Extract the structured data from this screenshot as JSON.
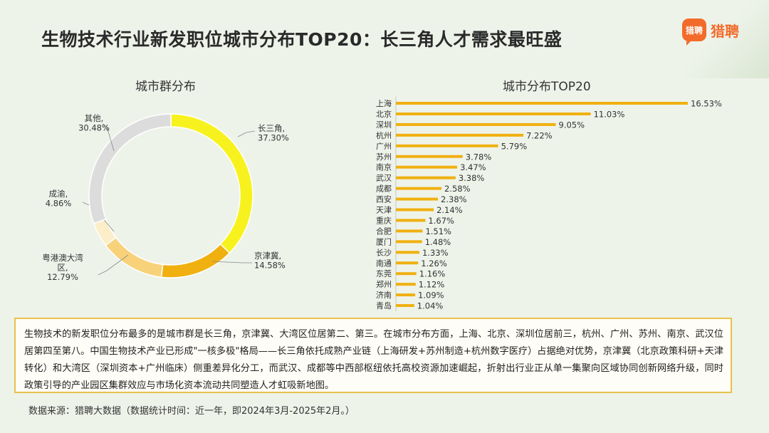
{
  "header": {
    "title": "生物技术行业新发职位城市分布TOP20：长三角人才需求最旺盛",
    "brand_logo_text": "猎聘",
    "brand_badge_text": "猎聘",
    "brand_color": "#f26b2a"
  },
  "chart_data": [
    {
      "type": "pie",
      "style": "donut",
      "title": "城市群分布",
      "categories": [
        "长三角",
        "京津冀",
        "粤港澳大湾区",
        "成渝",
        "其他"
      ],
      "labels": [
        [
          "长三角,",
          "37.30%"
        ],
        [
          "京津冀,",
          "14.58%"
        ],
        [
          "粤港澳大湾",
          "区,",
          "12.79%"
        ],
        [
          "成渝,",
          "4.86%"
        ],
        [
          "其他,",
          "30.48%"
        ]
      ],
      "values": [
        37.3,
        14.58,
        12.79,
        4.86,
        30.48
      ],
      "colors": [
        "#f7f21e",
        "#f0b010",
        "#f8d27a",
        "#fbeec8",
        "#dcdcdc"
      ]
    },
    {
      "type": "bar",
      "orientation": "horizontal",
      "title": "城市分布TOP20",
      "categories": [
        "上海",
        "北京",
        "深圳",
        "杭州",
        "广州",
        "苏州",
        "南京",
        "武汉",
        "成都",
        "西安",
        "天津",
        "重庆",
        "合肥",
        "厦门",
        "长沙",
        "南通",
        "东莞",
        "郑州",
        "济南",
        "青岛"
      ],
      "values": [
        16.53,
        11.03,
        9.05,
        7.22,
        5.79,
        3.78,
        3.47,
        3.38,
        2.58,
        2.38,
        2.14,
        1.67,
        1.51,
        1.48,
        1.33,
        1.26,
        1.16,
        1.12,
        1.09,
        1.04
      ],
      "value_labels": [
        "16.53%",
        "11.03%",
        "9.05%",
        "7.22%",
        "5.79%",
        "3.78%",
        "3.47%",
        "3.38%",
        "2.58%",
        "2.38%",
        "2.14%",
        "1.67%",
        "1.51%",
        "1.48%",
        "1.33%",
        "1.26%",
        "1.16%",
        "1.12%",
        "1.09%",
        "1.04%"
      ],
      "unit": "%",
      "color": "#f0b010"
    }
  ],
  "summary": {
    "text": "生物技术的新发职位分布最多的是城市群是长三角，京津冀、大湾区位居第二、第三。在城市分布方面，上海、北京、深圳位居前三，杭州、广州、苏州、南京、武汉位居第四至第八。中国生物技术产业已形成\"一核多极\"格局——长三角依托成熟产业链（上海研发+苏州制造+杭州数字医疗）占据绝对优势，京津冀（北京政策科研+天津转化）和大湾区（深圳资本+广州临床）侧重差异化分工，而武汉、成都等中西部枢纽依托高校资源加速崛起，折射出行业正从单一集聚向区域协同创新网络升级，同时政策引导的产业园区集群效应与市场化资本流动共同塑造人才虹吸新地图。"
  },
  "footer": {
    "source": "数据来源：猎聘大数据（数据统计时间：近一年，即2024年3月-2025年2月。）"
  }
}
